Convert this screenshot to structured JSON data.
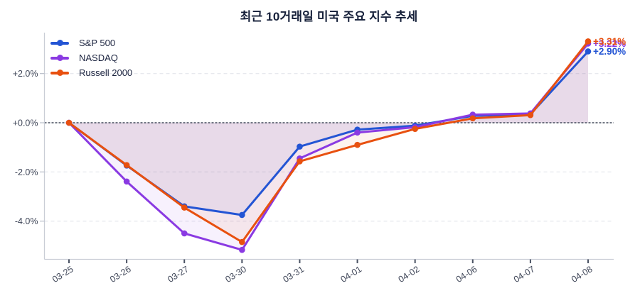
{
  "title": "최근 10거래일 미국 주요 지수 추세",
  "chart_data": {
    "type": "line",
    "x": [
      "03-25",
      "03-26",
      "03-27",
      "03-30",
      "03-31",
      "04-01",
      "04-02",
      "04-06",
      "04-07",
      "04-08"
    ],
    "series": [
      {
        "name": "S&P 500",
        "color": "#2455d4",
        "values": [
          0.0,
          -1.74,
          -3.4,
          -3.75,
          -0.97,
          -0.28,
          -0.12,
          0.28,
          0.35,
          2.9
        ],
        "end_label": "+2.90%"
      },
      {
        "name": "NASDAQ",
        "color": "#8a3ae2",
        "values": [
          0.0,
          -2.39,
          -4.5,
          -5.17,
          -1.45,
          -0.4,
          -0.18,
          0.33,
          0.38,
          3.22
        ],
        "end_label": "+3.22%"
      },
      {
        "name": "Russell 2000",
        "color": "#e8500f",
        "values": [
          0.0,
          -1.72,
          -3.45,
          -4.85,
          -1.57,
          -0.9,
          -0.25,
          0.18,
          0.31,
          3.31
        ],
        "end_label": "+3.31%"
      }
    ],
    "y_ticks": [
      {
        "value": 2.0,
        "label": "+2.0%"
      },
      {
        "value": 0.0,
        "label": "+0.0%"
      },
      {
        "value": -2.0,
        "label": "-2.0%"
      },
      {
        "value": -4.0,
        "label": "-4.0%"
      }
    ],
    "ylim": [
      -5.6,
      3.7
    ],
    "xlabel": "",
    "ylabel": "",
    "grid": "horizontal-dashed",
    "zero_baseline": true,
    "fill": "each series filled to zero line, translucent",
    "legend_position": "upper-left"
  },
  "colors": {
    "title_text": "#16203a",
    "axis_text": "#3f4658",
    "spine": "#c9cdd6",
    "grid": "#e4e6ec",
    "zero_line": "#3a4152",
    "background": "#ffffff"
  }
}
